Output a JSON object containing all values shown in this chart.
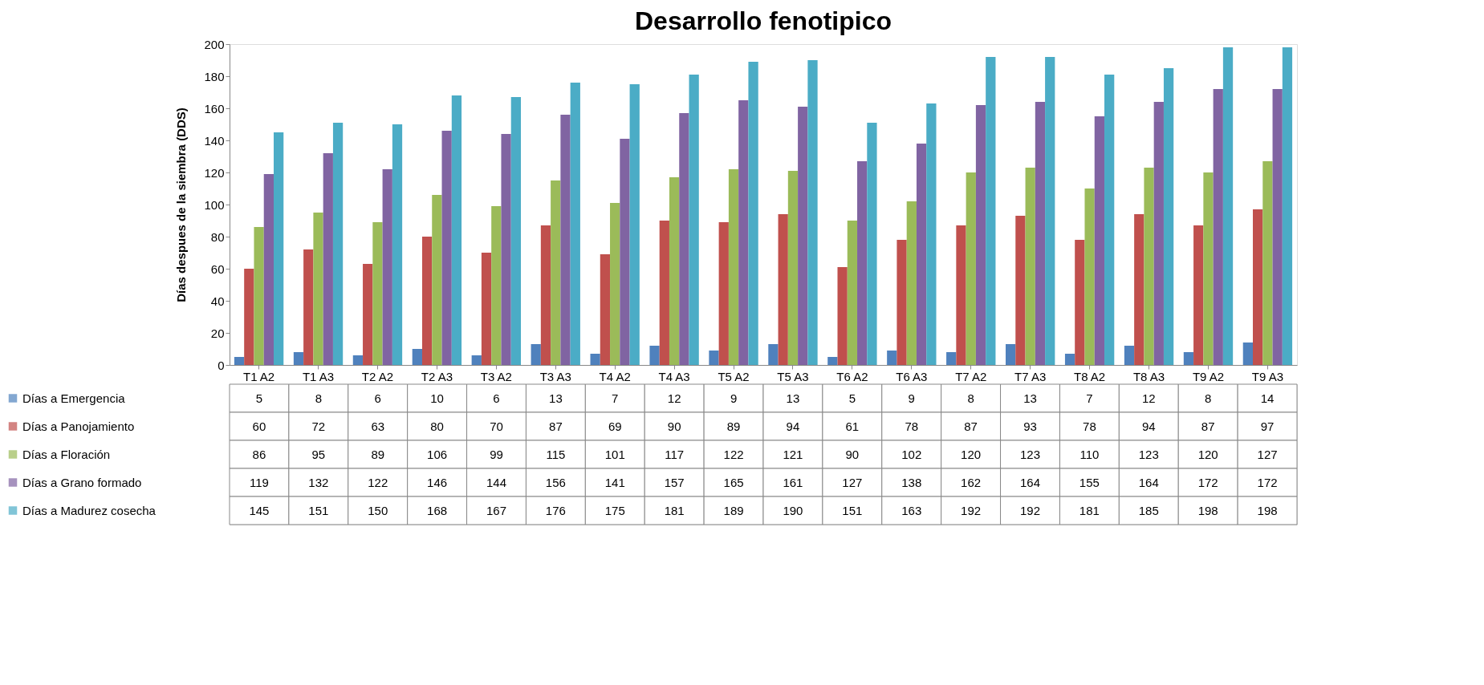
{
  "chart_data": {
    "type": "bar",
    "title": "Desarrollo fenotipico",
    "ylabel": "Días despues de la siembra (DDS)",
    "categories": [
      "T1 A2",
      "T1 A3",
      "T2 A2",
      "T2 A3",
      "T3 A2",
      "T3 A3",
      "T4 A2",
      "T4 A3",
      "T5 A2",
      "T5 A3",
      "T6 A2",
      "T6 A3",
      "T7 A2",
      "T7 A3",
      "T8 A2",
      "T8 A3",
      "T9 A2",
      "T9 A3"
    ],
    "series": [
      {
        "name": "Días a Emergencia",
        "color": "#4f81bd",
        "values": [
          5,
          8,
          6,
          10,
          6,
          13,
          7,
          12,
          9,
          13,
          5,
          9,
          8,
          13,
          7,
          12,
          8,
          14
        ]
      },
      {
        "name": " Días a Panojamiento",
        "color": "#c0504d",
        "values": [
          60,
          72,
          63,
          80,
          70,
          87,
          69,
          90,
          89,
          94,
          61,
          78,
          87,
          93,
          78,
          94,
          87,
          97
        ]
      },
      {
        "name": "Días a Floración",
        "color": "#9bbb59",
        "values": [
          86,
          95,
          89,
          106,
          99,
          115,
          101,
          117,
          122,
          121,
          90,
          102,
          120,
          123,
          110,
          123,
          120,
          127
        ]
      },
      {
        "name": "Días a Grano formado",
        "color": "#8064a2",
        "values": [
          119,
          132,
          122,
          146,
          144,
          156,
          141,
          157,
          165,
          161,
          127,
          138,
          162,
          164,
          155,
          164,
          172,
          172
        ]
      },
      {
        "name": "Días a Madurez cosecha",
        "color": "#4bacc6",
        "values": [
          145,
          151,
          150,
          168,
          167,
          176,
          175,
          181,
          189,
          190,
          151,
          163,
          192,
          192,
          181,
          185,
          198,
          198
        ]
      }
    ],
    "ylim": [
      0,
      200
    ],
    "yticks": [
      0,
      20,
      40,
      60,
      80,
      100,
      120,
      140,
      160,
      180,
      200
    ],
    "grid": false,
    "legend": "bottom",
    "data_labels": true
  }
}
